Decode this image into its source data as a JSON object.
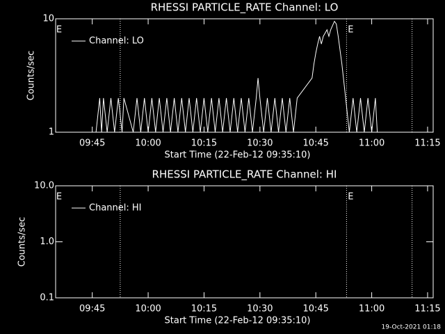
{
  "chart_data": [
    {
      "type": "line",
      "title": "RHESSI PARTICLE_RATE Channel: LO",
      "xlabel": "Start Time (22-Feb-12 09:35:10)",
      "ylabel": "Counts/sec",
      "log_y": true,
      "ylim": [
        1,
        10
      ],
      "yticks": [
        1,
        10
      ],
      "xlim": [
        "09:35:10",
        "11:16:30"
      ],
      "xticks": [
        "09:45",
        "10:00",
        "10:15",
        "10:30",
        "10:45",
        "11:00",
        "11:15"
      ],
      "vlines": [
        "09:52:30",
        "10:53:15",
        "11:10:50"
      ],
      "annotations": [
        "E",
        "E"
      ],
      "legend": "upper left",
      "x": [
        "09:46:00",
        "09:47:00",
        "09:47:30",
        "09:48:00",
        "09:49:00",
        "09:50:00",
        "09:51:00",
        "09:52:00",
        "09:53:00",
        "09:53:30",
        "09:56:00",
        "09:57:00",
        "09:58:00",
        "09:59:00",
        "10:00:00",
        "10:01:00",
        "10:02:00",
        "10:03:00",
        "10:04:00",
        "10:05:00",
        "10:06:00",
        "10:07:00",
        "10:08:00",
        "10:09:00",
        "10:10:00",
        "10:11:00",
        "10:12:00",
        "10:13:00",
        "10:14:00",
        "10:15:00",
        "10:16:00",
        "10:17:00",
        "10:18:00",
        "10:19:00",
        "10:20:00",
        "10:21:00",
        "10:22:00",
        "10:23:00",
        "10:24:00",
        "10:25:00",
        "10:26:00",
        "10:27:00",
        "10:28:00",
        "10:29:00",
        "10:29:30",
        "10:30:00",
        "10:31:00",
        "10:32:00",
        "10:33:00",
        "10:34:00",
        "10:35:00",
        "10:36:00",
        "10:37:00",
        "10:38:00",
        "10:39:00",
        "10:40:00",
        "10:44:00",
        "10:44:30",
        "10:45:00",
        "10:45:30",
        "10:46:00",
        "10:46:30",
        "10:47:00",
        "10:48:00",
        "10:48:30",
        "10:49:00",
        "10:50:00",
        "10:50:30",
        "10:51:00",
        "10:52:00",
        "10:53:00",
        "10:54:00",
        "10:55:00",
        "10:56:00",
        "10:57:00",
        "10:58:00",
        "10:59:00",
        "11:00:00",
        "11:01:00",
        "11:01:30"
      ],
      "series": [
        {
          "name": "Channel: LO",
          "color": "#ffffff",
          "values": [
            1,
            2,
            1,
            2,
            1,
            2,
            1,
            2,
            1,
            2,
            1,
            2,
            1,
            2,
            1,
            2,
            1,
            2,
            1,
            2,
            1,
            2,
            1,
            2,
            1,
            2,
            1,
            2,
            1,
            2,
            1,
            2,
            1,
            2,
            1,
            2,
            1,
            2,
            1,
            2,
            1,
            2,
            1,
            2,
            3,
            2,
            1,
            2,
            1,
            2,
            1,
            2,
            1,
            2,
            1,
            2,
            3,
            4,
            5,
            6,
            7,
            6,
            7,
            8,
            7,
            8,
            9.5,
            9,
            7,
            4,
            2,
            1,
            2,
            1,
            2,
            1,
            2,
            1,
            2,
            1
          ]
        }
      ]
    },
    {
      "type": "line",
      "title": "RHESSI PARTICLE_RATE Channel: HI",
      "xlabel": "Start Time (22-Feb-12 09:35:10)",
      "ylabel": "Counts/sec",
      "log_y": true,
      "ylim": [
        0.1,
        10
      ],
      "yticks": [
        0.1,
        {
          "value": 1,
          "label": "1.0"
        },
        {
          "value": 10,
          "label": "10.0"
        }
      ],
      "xlim": [
        "09:35:10",
        "11:16:30"
      ],
      "xticks": [
        "09:45",
        "10:00",
        "10:15",
        "10:30",
        "10:45",
        "11:00",
        "11:15"
      ],
      "vlines": [
        "09:52:30",
        "10:53:15",
        "11:10:50"
      ],
      "annotations": [
        "E",
        "E"
      ],
      "legend": "upper left",
      "x": [],
      "series": [
        {
          "name": "Channel: HI",
          "color": "#ffffff",
          "values": []
        }
      ]
    }
  ],
  "footer": "19-Oct-2021 01:18"
}
